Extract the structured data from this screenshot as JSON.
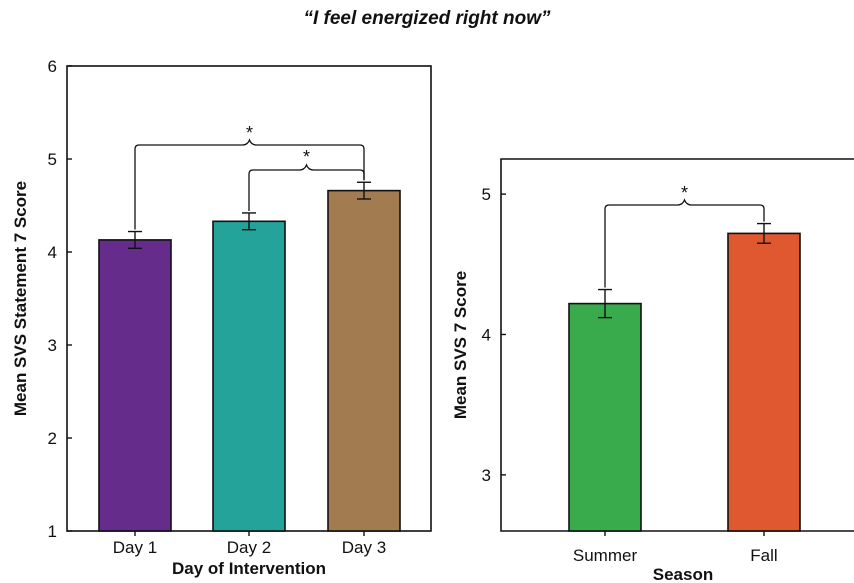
{
  "figure": {
    "title": "“I feel energized right now”"
  },
  "chart_data": [
    {
      "type": "bar",
      "title": "",
      "xlabel": "Day of Intervention",
      "ylabel": "Mean SVS Statement 7 Score",
      "categories": [
        "Day 1",
        "Day 2",
        "Day 3"
      ],
      "values": [
        4.13,
        4.33,
        4.66
      ],
      "errors": [
        0.09,
        0.09,
        0.09
      ],
      "colors": [
        "#652c8c",
        "#24a39a",
        "#a37b50"
      ],
      "ylim": [
        1,
        6
      ],
      "yticks": [
        1,
        2,
        3,
        4,
        5,
        6
      ],
      "annotations": [
        {
          "label": "*",
          "from": "Day 1",
          "to": "Day 3"
        },
        {
          "label": "*",
          "from": "Day 2",
          "to": "Day 3"
        }
      ],
      "grid": false,
      "legend": "none"
    },
    {
      "type": "bar",
      "title": "",
      "xlabel": "Season",
      "ylabel": "Mean SVS 7 Score",
      "categories": [
        "Summer",
        "Fall"
      ],
      "values": [
        4.22,
        4.72
      ],
      "errors": [
        0.1,
        0.07
      ],
      "colors": [
        "#3aab4c",
        "#e0582f"
      ],
      "ylim": [
        2.6,
        5.25
      ],
      "yticks": [
        3,
        4,
        5
      ],
      "annotations": [
        {
          "label": "*",
          "from": "Summer",
          "to": "Fall"
        }
      ],
      "grid": false,
      "legend": "none"
    }
  ]
}
